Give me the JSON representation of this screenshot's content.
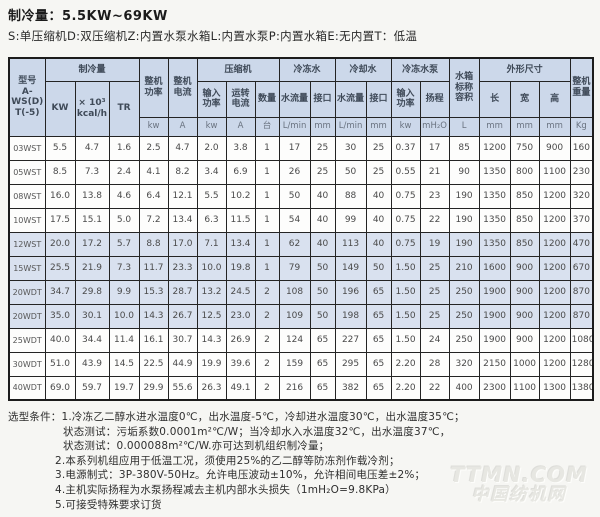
{
  "page": {
    "title": "制冷量：5.5KW~69KW",
    "subtitle": "S:单压缩机D:双压缩机Z:内置水泵水箱L:内置水泵P:内置水箱E:无内置T：低温"
  },
  "colors": {
    "header_bg": "#ccd8ea",
    "shaded_row_bg": "#d9e1ef",
    "border": "#242424",
    "page_bg": "#f6f6f3"
  },
  "table": {
    "header": {
      "model": "型号\nA-\nWS(D)\nT(-5)",
      "cooling_capacity_group": "制冷量",
      "cooling_capacity_cols": [
        "KW",
        "× 10³\nkcal/h",
        "TR"
      ],
      "machine_power": "整机\n功率",
      "machine_power_unit": "kw",
      "machine_current": "整机\n电流",
      "machine_current_unit": "A",
      "compressor_group": "压缩机",
      "compressor_cols": [
        "输入\n功率",
        "运转\n电流",
        "数量"
      ],
      "compressor_units": [
        "kw",
        "A",
        "台"
      ],
      "chilled_water_group": "冷冻水",
      "chilled_water_cols": [
        "水流量",
        "接口"
      ],
      "chilled_water_units": [
        "L/min",
        "mm"
      ],
      "cooling_water_group": "冷却水",
      "cooling_water_cols": [
        "水流量",
        "接口"
      ],
      "cooling_water_units": [
        "L/min",
        "mm"
      ],
      "pump_group": "冷冻水泵",
      "pump_cols": [
        "输入\n功率",
        "扬程"
      ],
      "pump_units": [
        "kw",
        "mH₂O"
      ],
      "tank_volume": "水箱\n标称\n容积",
      "tank_volume_unit": "L",
      "dimensions_group": "外形尺寸",
      "dimensions_cols": [
        "长",
        "宽",
        "高"
      ],
      "dimensions_units": [
        "mm",
        "mm",
        "mm"
      ],
      "weight": "整机\n重量",
      "weight_unit": "Kg"
    },
    "rows": [
      {
        "model": "03WST",
        "shaded": false,
        "values": [
          "5.5",
          "4.7",
          "1.6",
          "2.5",
          "4.7",
          "2.0",
          "3.8",
          "1",
          "17",
          "25",
          "30",
          "25",
          "0.37",
          "17",
          "85",
          "1200",
          "750",
          "900",
          "160"
        ]
      },
      {
        "model": "05WST",
        "shaded": false,
        "values": [
          "8.5",
          "7.3",
          "2.4",
          "4.1",
          "8.2",
          "3.4",
          "6.9",
          "1",
          "26",
          "25",
          "50",
          "25",
          "0.55",
          "21",
          "90",
          "1350",
          "800",
          "1100",
          "230"
        ]
      },
      {
        "model": "08WST",
        "shaded": false,
        "values": [
          "16.0",
          "13.8",
          "4.6",
          "6.4",
          "12.1",
          "5.5",
          "10.2",
          "1",
          "50",
          "40",
          "88",
          "40",
          "0.75",
          "23",
          "190",
          "1350",
          "850",
          "1200",
          "320"
        ]
      },
      {
        "model": "10WST",
        "shaded": false,
        "values": [
          "17.5",
          "15.1",
          "5.0",
          "7.2",
          "13.4",
          "6.3",
          "11.5",
          "1",
          "54",
          "40",
          "99",
          "40",
          "0.75",
          "22",
          "190",
          "1350",
          "850",
          "1200",
          "370"
        ]
      },
      {
        "model": "12WST",
        "shaded": true,
        "values": [
          "20.0",
          "17.2",
          "5.7",
          "8.8",
          "17.0",
          "7.1",
          "13.4",
          "1",
          "62",
          "40",
          "113",
          "40",
          "0.75",
          "19",
          "190",
          "1350",
          "850",
          "1200",
          "470"
        ]
      },
      {
        "model": "15WST",
        "shaded": true,
        "values": [
          "25.5",
          "21.9",
          "7.3",
          "11.7",
          "23.3",
          "10.0",
          "19.8",
          "1",
          "79",
          "50",
          "149",
          "50",
          "1.50",
          "25",
          "210",
          "1600",
          "900",
          "1200",
          "670"
        ]
      },
      {
        "model": "20WDT",
        "shaded": true,
        "values": [
          "34.7",
          "29.8",
          "9.9",
          "15.3",
          "28.7",
          "13.2",
          "24.5",
          "2",
          "108",
          "50",
          "196",
          "65",
          "1.50",
          "25",
          "250",
          "1900",
          "900",
          "1200",
          "870"
        ]
      },
      {
        "model": "20WDT",
        "shaded": true,
        "values": [
          "35.0",
          "30.1",
          "10.0",
          "14.3",
          "26.7",
          "12.5",
          "23.0",
          "2",
          "109",
          "50",
          "198",
          "65",
          "1.50",
          "25",
          "250",
          "1900",
          "900",
          "1200",
          "870"
        ]
      },
      {
        "model": "25WDT",
        "shaded": false,
        "values": [
          "40.0",
          "34.4",
          "11.4",
          "16.1",
          "30.7",
          "14.3",
          "26.9",
          "2",
          "124",
          "65",
          "227",
          "65",
          "1.50",
          "24",
          "250",
          "1900",
          "900",
          "1200",
          "1080"
        ]
      },
      {
        "model": "30WDT",
        "shaded": false,
        "values": [
          "51.0",
          "43.9",
          "14.5",
          "22.5",
          "44.9",
          "19.9",
          "39.6",
          "2",
          "159",
          "65",
          "295",
          "65",
          "2.20",
          "28",
          "320",
          "2150",
          "1000",
          "1200",
          "1280"
        ]
      },
      {
        "model": "40WDT",
        "shaded": false,
        "values": [
          "69.0",
          "59.7",
          "19.7",
          "29.9",
          "55.6",
          "26.3",
          "49.1",
          "2",
          "216",
          "65",
          "382",
          "65",
          "2.20",
          "22",
          "400",
          "2300",
          "1100",
          "1300",
          "1380"
        ]
      }
    ]
  },
  "notes": {
    "label": "选型条件：",
    "lines": [
      "1.冷冻乙二醇水进水温度0℃，出水温度-5℃，冷却进水温度30℃，出水温度35℃；",
      "状态测试：污垢系数0.0001m²℃/W；当冷却水入水温度32℃，出水温度37℃，",
      "状态测试：0.000088m²℃/W.亦可达到机组织制冷量；",
      "2.本系列机组应用于低温工况，须使用25%的乙二醇等防冻剂作载冷剂；",
      "3.电源制式：3P-380V-50Hz。允许电压波动±10%，允许相间电压差±2%；",
      "4.主机实际扬程为水泵扬程减去主机内部水头损失（1mH₂O=9.8KPa）",
      "5.可接受特殊要求订货"
    ]
  },
  "watermark": {
    "line1": "TTMN.COM",
    "line2": "中国纺机网"
  }
}
